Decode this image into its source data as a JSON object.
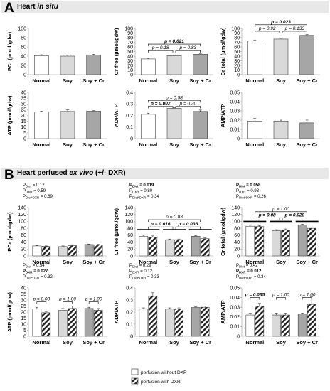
{
  "colors": {
    "normal": "#ffffff",
    "soy": "#d9d9d9",
    "soycr": "#a6a6a6",
    "edge": "#404040",
    "hatch": "#222222"
  },
  "sections": {
    "A": {
      "letter": "A",
      "title_plain": "Heart ",
      "title_italic": "in situ"
    },
    "B": {
      "letter": "B",
      "title_plain": "Heart perfused ",
      "title_italic": "ex vivo",
      "title_tail": " (+/- DXR)"
    }
  },
  "legend": {
    "without": "perfusion without DXR",
    "with": "perfusion with DXR"
  },
  "chart_data": [
    {
      "type": "bar",
      "section": "A",
      "ylabel": "PCr (µmol/gdw)",
      "categories": [
        "Normal",
        "Soy",
        "Soy + Cr"
      ],
      "values": [
        41,
        40,
        42
      ],
      "errors": [
        2,
        2,
        2
      ],
      "ylim": [
        0,
        100
      ],
      "ticks": [
        0,
        20,
        40,
        60,
        80,
        100
      ],
      "tick_labels": [
        "0",
        "20",
        "40",
        "60",
        "80",
        "100"
      ],
      "brackets": []
    },
    {
      "type": "bar",
      "section": "A",
      "ylabel": "Cr free (µmol/gdw)",
      "categories": [
        "Normal",
        "Soy",
        "Soy + Cr"
      ],
      "values": [
        34,
        41,
        44
      ],
      "errors": [
        1.5,
        1.5,
        1
      ],
      "ylim": [
        0,
        100
      ],
      "ticks": [
        0,
        10,
        20,
        30,
        40,
        50,
        60,
        70,
        80,
        90,
        100
      ],
      "tick_labels": [
        "0",
        "10",
        "20",
        "30",
        "40",
        "50",
        "60",
        "70",
        "80",
        "90",
        "100"
      ],
      "brackets": [
        {
          "from": 0,
          "to": 2,
          "level": 66,
          "text": "p = 0.021",
          "bold": true
        },
        {
          "from": 0,
          "to": 1,
          "level": 52,
          "text": "p = 0.18",
          "bold": false
        },
        {
          "from": 1,
          "to": 2,
          "level": 52,
          "text": "p = 0.83",
          "bold": false
        }
      ]
    },
    {
      "type": "bar",
      "section": "A",
      "ylabel": "Cr total (µmol/gdw)",
      "categories": [
        "Normal",
        "Soy",
        "Soy + Cr"
      ],
      "values": [
        73,
        77,
        85
      ],
      "errors": [
        2,
        2,
        2
      ],
      "ylim": [
        0,
        100
      ],
      "ticks": [
        0,
        10,
        20,
        30,
        40,
        50,
        60,
        70,
        80,
        90,
        100
      ],
      "tick_labels": [
        "0",
        "10",
        "20",
        "30",
        "40",
        "50",
        "60",
        "70",
        "80",
        "90",
        "100"
      ],
      "brackets": [
        {
          "from": 0,
          "to": 2,
          "level": 108,
          "text": "p = 0.023",
          "bold": true
        },
        {
          "from": 0,
          "to": 1,
          "level": 94,
          "text": "p = 0.92",
          "bold": false
        },
        {
          "from": 1,
          "to": 2,
          "level": 94,
          "text": "p = 0.133",
          "bold": false
        }
      ]
    },
    {
      "type": "bar",
      "section": "A",
      "ylabel": "ATP (µmol/gdw)",
      "categories": [
        "Normal",
        "Soy",
        "Soy + Cr"
      ],
      "values": [
        23,
        23.5,
        23.7
      ],
      "errors": [
        0.8,
        1.3,
        0.5
      ],
      "ylim": [
        0,
        40
      ],
      "ticks": [
        0,
        5,
        10,
        15,
        20,
        25,
        30,
        35,
        40
      ],
      "tick_labels": [
        "0",
        "5",
        "10",
        "15",
        "20",
        "25",
        "30",
        "35",
        "40"
      ],
      "brackets": []
    },
    {
      "type": "bar",
      "section": "A",
      "ylabel": "ADP/ATP",
      "categories": [
        "Normal",
        "Soy",
        "Soy + Cr"
      ],
      "values": [
        0.21,
        0.262,
        0.235
      ],
      "errors": [
        0.01,
        0.005,
        0.012
      ],
      "ylim": [
        0,
        0.4
      ],
      "ticks": [
        0,
        0.1,
        0.2,
        0.3,
        0.4
      ],
      "tick_labels": [
        "0",
        "0.1",
        "0.2",
        "0.3",
        "0.4"
      ],
      "brackets": [
        {
          "from": 0,
          "to": 2,
          "level": 0.33,
          "text": "p = 0.58",
          "bold": false
        },
        {
          "from": 0,
          "to": 1,
          "level": 0.28,
          "text": "p = 0.002",
          "bold": true
        },
        {
          "from": 1,
          "to": 2,
          "level": 0.28,
          "text": "p = 0.20",
          "bold": false
        }
      ]
    },
    {
      "type": "bar",
      "section": "A",
      "ylabel": "AMP/ATP",
      "categories": [
        "Normal",
        "Soy",
        "Soy + Cr"
      ],
      "values": [
        0.019,
        0.019,
        0.017
      ],
      "errors": [
        0.003,
        0.001,
        0.003
      ],
      "ylim": [
        0,
        0.05
      ],
      "ticks": [
        0,
        0.01,
        0.02,
        0.03,
        0.04,
        0.05
      ],
      "tick_labels": [
        "0",
        "0.01",
        "0.02",
        "0.03",
        "0.04",
        "0.05"
      ],
      "brackets": []
    },
    {
      "type": "bar",
      "section": "B",
      "ylabel": "PCr (µmol/gdw)",
      "categories": [
        "Normal",
        "Soy",
        "Soy + Cr"
      ],
      "values_without": [
        29,
        27,
        33
      ],
      "values_with": [
        28,
        30,
        32
      ],
      "errors_without": [
        1,
        2,
        1.5
      ],
      "errors_with": [
        1,
        2.5,
        1.5
      ],
      "ylim": [
        0,
        140
      ],
      "ticks": [
        0,
        20,
        40,
        60,
        80,
        100,
        120,
        140
      ],
      "tick_labels": [
        "0",
        "20",
        "40",
        "60",
        "80",
        "100",
        "120",
        "140"
      ],
      "stats": [
        {
          "label": "P",
          "sub": "Diet",
          "value": " = 0.12",
          "bold": false
        },
        {
          "label": "P",
          "sub": "DXR",
          "value": " = 0.59",
          "bold": false
        },
        {
          "label": "P",
          "sub": "Diet*DXR",
          "value": " = 0.69",
          "bold": false
        }
      ],
      "brackets": [],
      "group_lines": []
    },
    {
      "type": "bar",
      "section": "B",
      "ylabel": "Cr free (µmol/gdw)",
      "categories": [
        "Normal",
        "Soy",
        "Soy + Cr"
      ],
      "values_without": [
        57,
        47,
        57
      ],
      "values_with": [
        55,
        47,
        50
      ],
      "errors_without": [
        3,
        2,
        2
      ],
      "errors_with": [
        3,
        2,
        2
      ],
      "ylim": [
        0,
        140
      ],
      "ticks": [
        0,
        20,
        40,
        60,
        80,
        100,
        120,
        140
      ],
      "tick_labels": [
        "0",
        "20",
        "40",
        "60",
        "80",
        "100",
        "120",
        "140"
      ],
      "stats": [
        {
          "label": "P",
          "sub": "Diet",
          "value": " = 0.019",
          "bold": true
        },
        {
          "label": "P",
          "sub": "DXR",
          "value": " = 0.80",
          "bold": false
        },
        {
          "label": "P",
          "sub": "Diet*DXR",
          "value": " = 0.34",
          "bold": false
        }
      ],
      "brackets": [
        {
          "from": 0,
          "to": 2,
          "level": 105,
          "text": "p = 0.83",
          "bold": false
        },
        {
          "from": 0,
          "to": 1,
          "level": 84,
          "text": "p = 0.016",
          "bold": true
        },
        {
          "from": 1,
          "to": 2,
          "level": 84,
          "text": "p = 0.036",
          "bold": true
        }
      ],
      "group_lines": [
        {
          "level": 76
        }
      ]
    },
    {
      "type": "bar",
      "section": "B",
      "ylabel": "Cr total (µmol/gdw)",
      "categories": [
        "Normal",
        "Soy",
        "Soy + Cr"
      ],
      "values_without": [
        86,
        73,
        90
      ],
      "values_with": [
        85,
        75,
        80
      ],
      "errors_without": [
        3,
        3,
        2
      ],
      "errors_with": [
        3,
        3,
        3
      ],
      "ylim": [
        0,
        140
      ],
      "ticks": [
        0,
        20,
        40,
        60,
        80,
        100,
        120,
        140
      ],
      "tick_labels": [
        "0",
        "20",
        "40",
        "60",
        "80",
        "100",
        "120",
        "140"
      ],
      "stats": [
        {
          "label": "P",
          "sub": "Diet",
          "value": " = 0.058",
          "bold": true
        },
        {
          "label": "P",
          "sub": "DXR",
          "value": " = 0.93",
          "bold": false
        },
        {
          "label": "P",
          "sub": "Diet*DXR",
          "value": " = 0.26",
          "bold": false
        }
      ],
      "brackets": [
        {
          "from": 0,
          "to": 2,
          "level": 128,
          "text": "p = 1.00",
          "bold": false
        },
        {
          "from": 0,
          "to": 1,
          "level": 110,
          "text": "p = 0.08",
          "bold": true
        },
        {
          "from": 1,
          "to": 2,
          "level": 110,
          "text": "p = 0.028",
          "bold": true
        }
      ],
      "group_lines": [
        {
          "level": 100
        }
      ]
    },
    {
      "type": "bar",
      "section": "B",
      "ylabel": "ATP (µmol/gdw)",
      "categories": [
        "Normal",
        "Soy",
        "Soy + Cr"
      ],
      "values_without": [
        22.5,
        21.5,
        23
      ],
      "values_with": [
        19.5,
        23,
        21.5
      ],
      "errors_without": [
        1.5,
        1.5,
        1
      ],
      "errors_with": [
        1,
        2,
        1.5
      ],
      "ylim": [
        0,
        40
      ],
      "ticks": [
        0,
        5,
        10,
        15,
        20,
        25,
        30,
        35,
        40
      ],
      "tick_labels": [
        "0",
        "5",
        "10",
        "15",
        "20",
        "25",
        "30",
        "35",
        "40"
      ],
      "stats": [
        {
          "label": "P",
          "sub": "Diet",
          "value": " = 0.54",
          "bold": false
        },
        {
          "label": "P",
          "sub": "DXR",
          "value": " = 0.027",
          "bold": true
        },
        {
          "label": "P",
          "sub": "Diet*DXR",
          "value": " = 0.32",
          "bold": false
        }
      ],
      "brackets": [
        {
          "pair": 0,
          "level": 28.5,
          "text": "p = 0.08",
          "bold": false
        },
        {
          "pair": 1,
          "level": 28.5,
          "text": "p = 1.00",
          "bold": false
        },
        {
          "pair": 2,
          "level": 28.5,
          "text": "p = 1.00",
          "bold": false
        }
      ],
      "group_lines": []
    },
    {
      "type": "bar",
      "section": "B",
      "ylabel": "ADP/ATP",
      "categories": [
        "Normal",
        "Soy",
        "Soy + Cr"
      ],
      "values_without": [
        0.225,
        0.225,
        0.238
      ],
      "values_with": [
        0.33,
        0.225,
        0.24
      ],
      "errors_without": [
        0.01,
        0.01,
        0.005
      ],
      "errors_with": [
        0.03,
        0.01,
        0.01
      ],
      "ylim": [
        0,
        0.4
      ],
      "ticks": [
        0,
        0.1,
        0.2,
        0.3,
        0.4
      ],
      "tick_labels": [
        "0",
        "0.1",
        "0.2",
        "0.3",
        "0.4"
      ],
      "stats": [
        {
          "label": "P",
          "sub": "Diet",
          "value": " = 0.29",
          "bold": false
        },
        {
          "label": "P",
          "sub": "DXR",
          "value": " = 0.12",
          "bold": false
        },
        {
          "label": "P",
          "sub": "Diet*DXR",
          "value": " = 0.33",
          "bold": false
        }
      ],
      "brackets": [],
      "group_lines": []
    },
    {
      "type": "bar",
      "section": "B",
      "ylabel": "AMP/ATP",
      "categories": [
        "Normal",
        "Soy",
        "Soy + Cr"
      ],
      "values_without": [
        0.022,
        0.022,
        0.023
      ],
      "values_with": [
        0.031,
        0.022,
        0.033
      ],
      "errors_without": [
        0.002,
        0.002,
        0.001
      ],
      "errors_with": [
        0.003,
        0.002,
        0.008
      ],
      "ylim": [
        0,
        0.05
      ],
      "ticks": [
        0,
        0.01,
        0.02,
        0.03,
        0.04,
        0.05
      ],
      "tick_labels": [
        "0",
        "0.01",
        "0.02",
        "0.03",
        "0.04",
        "0.05"
      ],
      "stats": [
        {
          "label": "P",
          "sub": "Diet",
          "value": " = 0.42",
          "bold": false
        },
        {
          "label": "P",
          "sub": "DXR",
          "value": " = 0.012",
          "bold": true
        },
        {
          "label": "P",
          "sub": "Diet*DXR",
          "value": " = 0.34",
          "bold": false
        }
      ],
      "brackets": [
        {
          "pair": 0,
          "level": 0.04,
          "text": "p = 0.035",
          "bold": true
        },
        {
          "pair": 1,
          "level": 0.04,
          "text": "p = 1.00",
          "bold": false
        },
        {
          "pair": 2,
          "level": 0.04,
          "text": "p = 1.00",
          "bold": false
        }
      ],
      "group_lines": []
    }
  ]
}
